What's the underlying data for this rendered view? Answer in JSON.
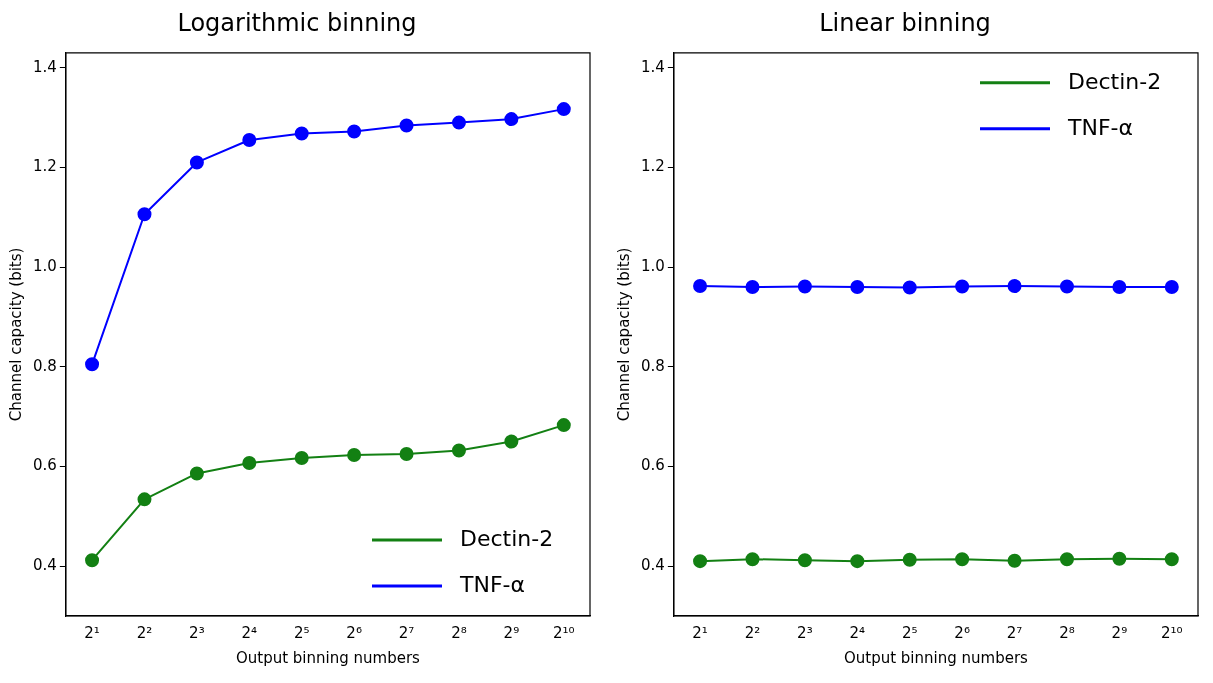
{
  "chart_data": [
    {
      "type": "line",
      "title": "Logarithmic binning",
      "xlabel": "Output binning numbers",
      "ylabel": "Channel capacity (bits)",
      "categories": [
        "2¹",
        "2²",
        "2³",
        "2⁴",
        "2⁵",
        "2⁶",
        "2⁷",
        "2⁸",
        "2⁹",
        "2¹⁰"
      ],
      "ylim": [
        0.3,
        1.43
      ],
      "yticks": [
        0.4,
        0.6,
        0.8,
        {
          "value": 1.0,
          "label": "1.0"
        },
        1.2,
        1.4
      ],
      "grid": false,
      "legend": "bottom right",
      "marker": "circle",
      "line_style": "solid",
      "series": [
        {
          "name": "Dectin-2",
          "color": "#138013",
          "values": [
            0.412,
            0.534,
            0.586,
            0.607,
            0.617,
            0.623,
            0.625,
            0.632,
            0.65,
            0.683
          ]
        },
        {
          "name": "TNF-α",
          "color": "#0000ff",
          "values": [
            0.805,
            1.106,
            1.21,
            1.255,
            1.268,
            1.272,
            1.284,
            1.29,
            1.297,
            1.317
          ]
        }
      ]
    },
    {
      "type": "line",
      "title": "Linear binning",
      "xlabel": "Output binning numbers",
      "ylabel": "Channel capacity (bits)",
      "categories": [
        "2¹",
        "2²",
        "2³",
        "2⁴",
        "2⁵",
        "2⁶",
        "2⁷",
        "2⁸",
        "2⁹",
        "2¹⁰"
      ],
      "ylim": [
        0.3,
        1.43
      ],
      "yticks": [
        0.4,
        0.6,
        0.8,
        {
          "value": 1.0,
          "label": "1.0"
        },
        1.2,
        1.4
      ],
      "grid": false,
      "legend": "top right",
      "marker": "circle",
      "line_style": "solid",
      "series": [
        {
          "name": "Dectin-2",
          "color": "#138013",
          "values": [
            0.41,
            0.414,
            0.412,
            0.41,
            0.413,
            0.414,
            0.411,
            0.414,
            0.415,
            0.414
          ]
        },
        {
          "name": "TNF-α",
          "color": "#0000ff",
          "values": [
            0.962,
            0.96,
            0.961,
            0.96,
            0.959,
            0.961,
            0.962,
            0.961,
            0.96,
            0.96
          ]
        }
      ]
    }
  ]
}
